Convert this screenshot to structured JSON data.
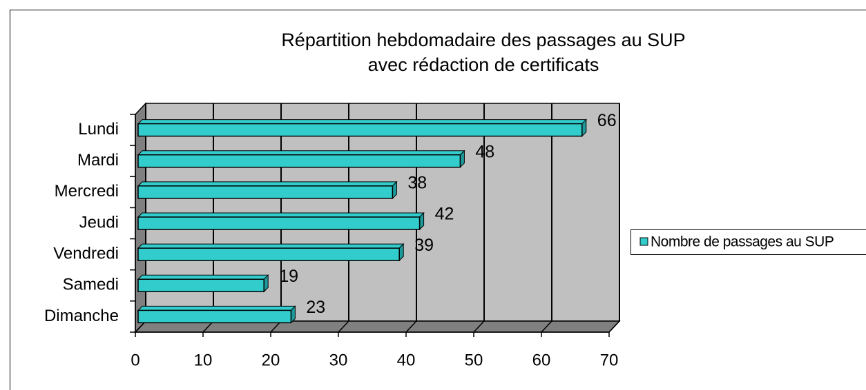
{
  "chart_data": {
    "type": "bar",
    "orientation": "horizontal",
    "title": [
      "Répartition hebdomadaire des passages au SUP",
      "avec rédaction de certificats"
    ],
    "categories": [
      "Lundi",
      "Mardi",
      "Mercredi",
      "Jeudi",
      "Vendredi",
      "Samedi",
      "Dimanche"
    ],
    "series": [
      {
        "name": "Nombre de passages au SUP",
        "color": "#33cccc",
        "values": [
          66,
          48,
          38,
          42,
          39,
          19,
          23
        ]
      }
    ],
    "xlim": [
      0,
      70
    ],
    "xticks": [
      0,
      10,
      20,
      30,
      40,
      50,
      60,
      70
    ],
    "grid": true,
    "legend": "right"
  }
}
